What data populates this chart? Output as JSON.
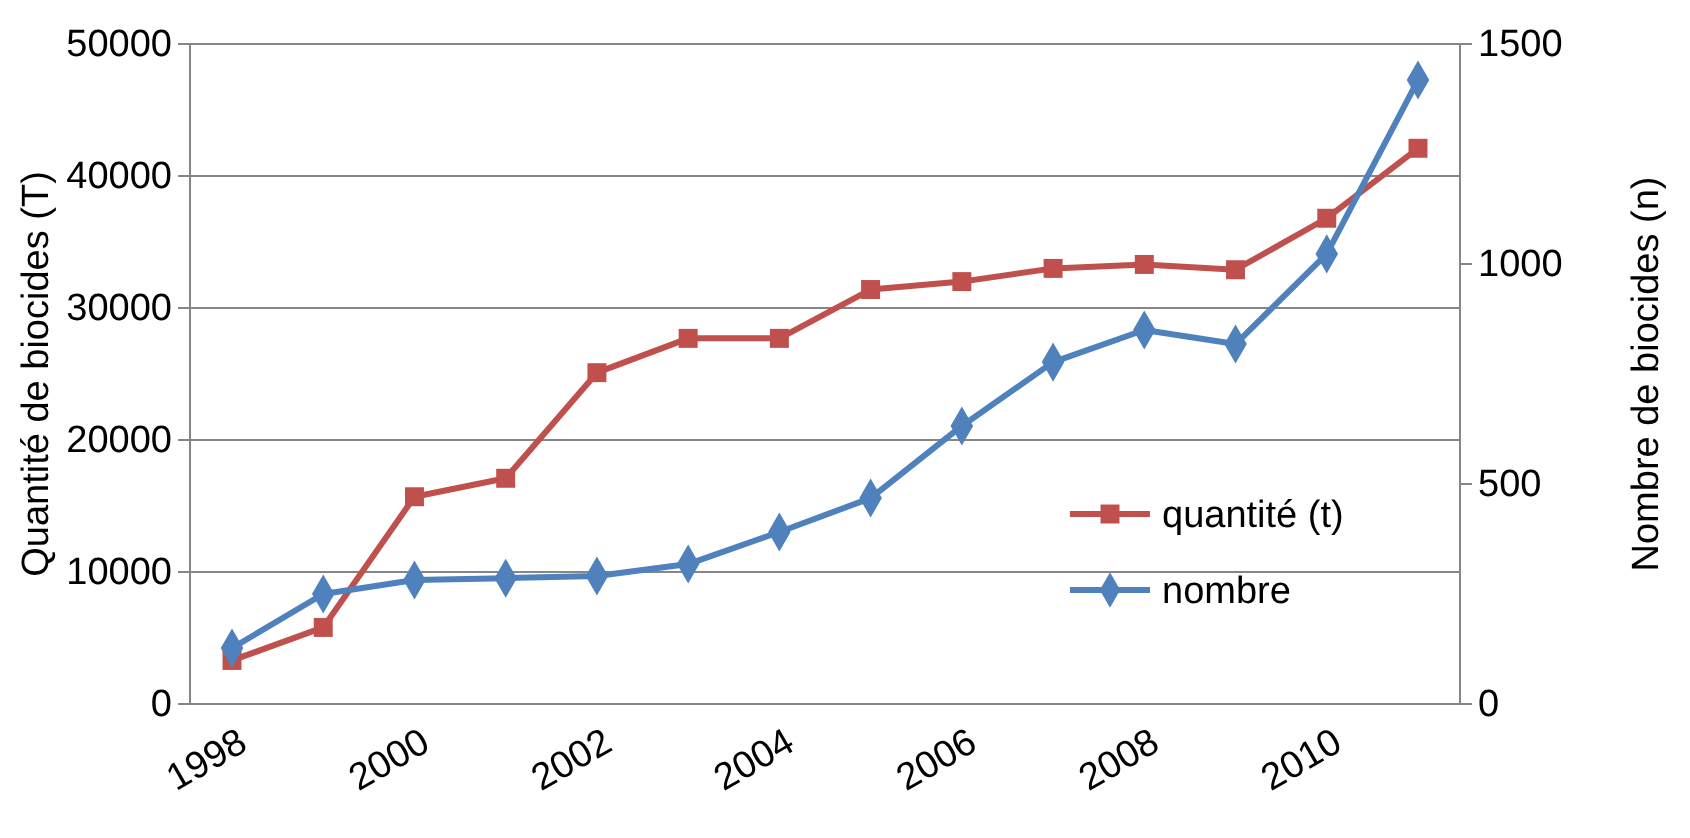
{
  "chart_data": {
    "type": "line",
    "categories": [
      "1998",
      null,
      "2000",
      null,
      "2002",
      null,
      "2004",
      null,
      "2006",
      null,
      "2008",
      null,
      "2010",
      null
    ],
    "ylabel": "Quantité de biocides (T)",
    "y2label": "Nombre  de biocides (n)",
    "ylim": [
      0,
      50000
    ],
    "yticks": [
      0,
      10000,
      20000,
      30000,
      40000,
      50000
    ],
    "y2lim": [
      0,
      1500
    ],
    "y2ticks": [
      0,
      500,
      1000,
      1500
    ],
    "grid": "y",
    "legend": "bottom right",
    "series": [
      {
        "name": "quantité (t)",
        "color": "#c0504d",
        "marker": "square",
        "values": [
          3300,
          5800,
          15700,
          17100,
          25100,
          27700,
          27700,
          31400,
          32000,
          33000,
          33300,
          32900,
          36800,
          42100
        ]
      },
      {
        "name": "nombre",
        "color": "#4f81bd",
        "marker": "diamond",
        "axis": "y2",
        "values": [
          127,
          250,
          282,
          286,
          291,
          318,
          391,
          468,
          632,
          777,
          850,
          818,
          1023,
          1418
        ]
      }
    ]
  }
}
